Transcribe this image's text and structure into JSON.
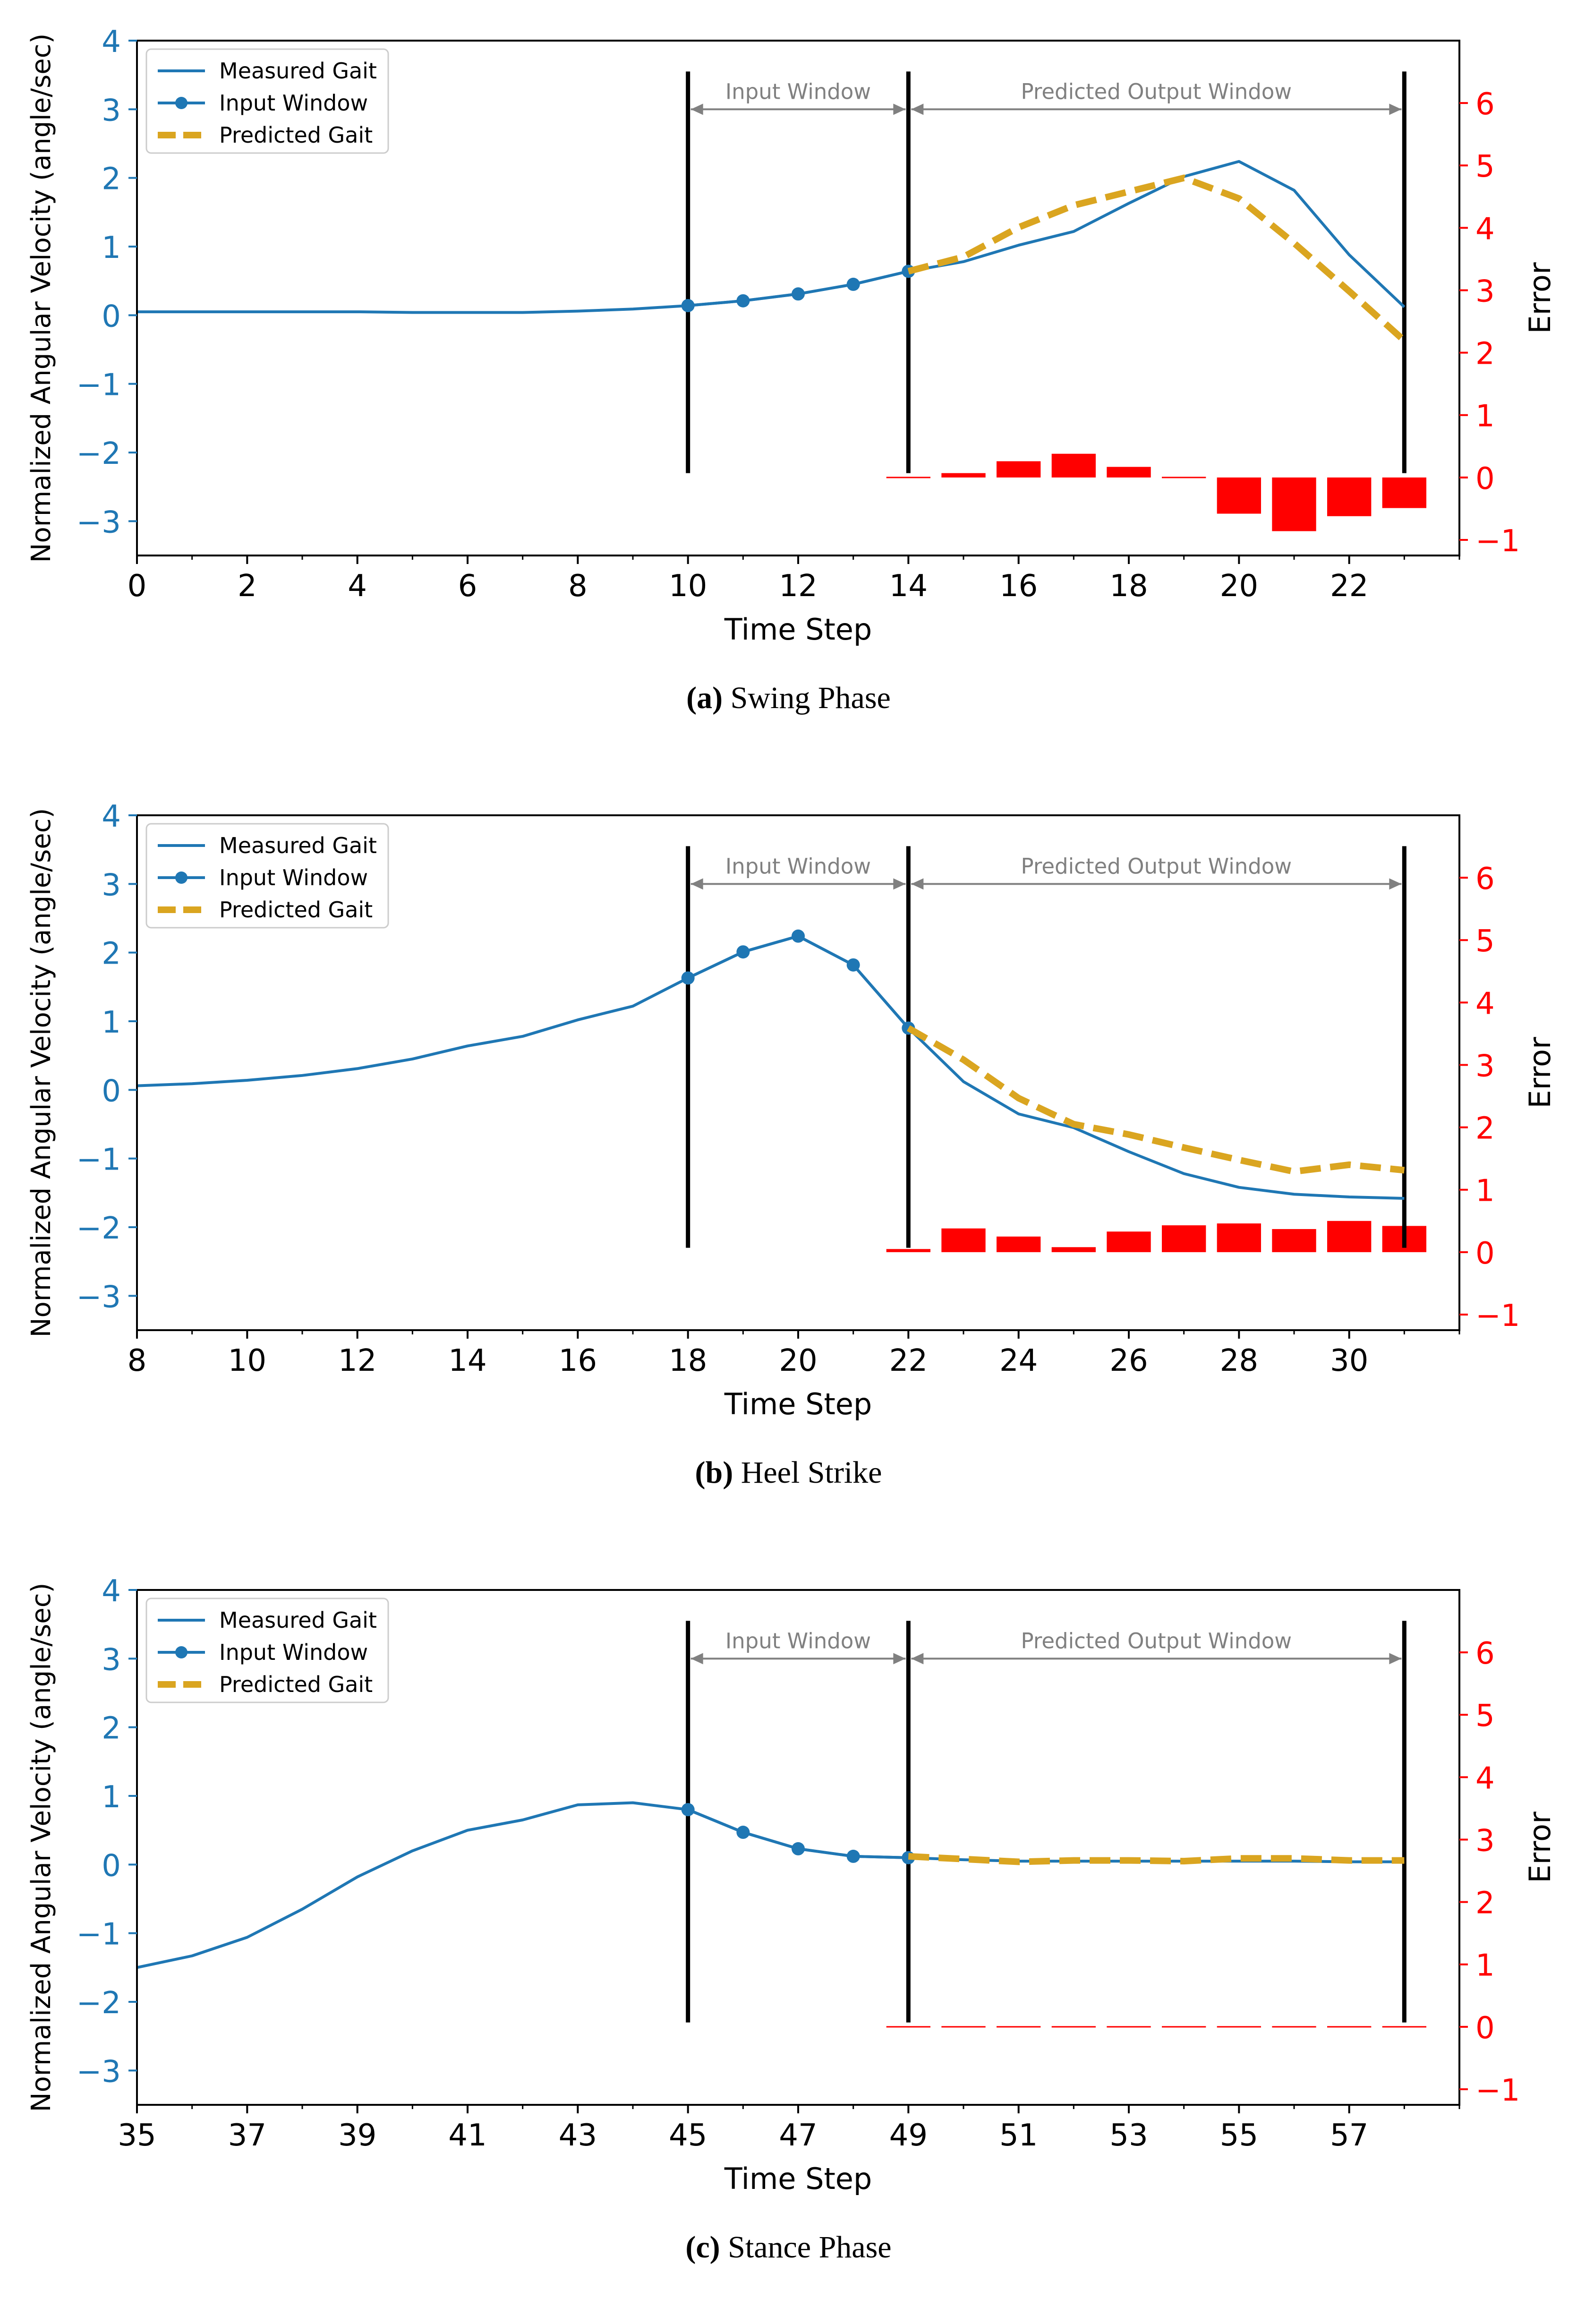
{
  "common": {
    "ylabel": "Normalized Angular Velocity (angle/sec)",
    "xlabel": "Time Step",
    "y2label": "Error",
    "ylim": [
      -3.5,
      4
    ],
    "y2lim": [
      -1.25,
      7
    ],
    "yticks": [
      "−3",
      "−2",
      "−1",
      "0",
      "1",
      "2",
      "3",
      "4"
    ],
    "y2ticks": [
      "−1",
      "0",
      "1",
      "2",
      "3",
      "4",
      "5",
      "6"
    ],
    "input_window_label": "Input Window",
    "output_window_label": "Predicted Output Window",
    "legend": [
      "Measured Gait",
      "Input Window",
      "Predicted Gait"
    ],
    "colors": {
      "measured": "#1f77b4",
      "predicted": "#daa520",
      "error": "#ff0000",
      "window_line": "#000000",
      "arrow": "#808080"
    }
  },
  "chart_data": [
    {
      "type": "line",
      "caption_label": "(a)",
      "caption_text": "Swing Phase",
      "xlim": [
        0,
        24
      ],
      "xticks": [
        0,
        2,
        4,
        6,
        8,
        10,
        12,
        14,
        16,
        18,
        20,
        22
      ],
      "xtick_labels": [
        "0",
        "2",
        "4",
        "6",
        "8",
        "10",
        "12",
        "14",
        "16",
        "18",
        "20",
        "22"
      ],
      "window_lines": [
        10,
        14,
        23
      ],
      "measured": {
        "x": [
          0,
          1,
          2,
          3,
          4,
          5,
          6,
          7,
          8,
          9,
          10,
          11,
          12,
          13,
          14,
          15,
          16,
          17,
          18,
          19,
          20,
          21,
          22,
          23
        ],
        "y": [
          0.05,
          0.05,
          0.05,
          0.05,
          0.05,
          0.04,
          0.04,
          0.04,
          0.06,
          0.09,
          0.14,
          0.21,
          0.31,
          0.45,
          0.64,
          0.78,
          1.02,
          1.22,
          1.63,
          2.02,
          2.24,
          1.82,
          0.88,
          0.12
        ]
      },
      "input": {
        "x": [
          10,
          11,
          12,
          13,
          14
        ],
        "y": [
          0.14,
          0.21,
          0.31,
          0.45,
          0.64
        ]
      },
      "predicted": {
        "x": [
          14,
          15,
          16,
          17,
          18,
          19,
          20,
          21,
          22,
          23
        ],
        "y": [
          0.64,
          0.85,
          1.28,
          1.6,
          1.8,
          2.0,
          1.7,
          1.05,
          0.35,
          -0.37
        ]
      },
      "error": {
        "x": [
          14,
          15,
          16,
          17,
          18,
          19,
          20,
          21,
          22,
          23
        ],
        "values": [
          0.0,
          0.07,
          0.26,
          0.38,
          0.17,
          -0.02,
          -0.58,
          -0.86,
          -0.62,
          -0.49
        ]
      }
    },
    {
      "type": "line",
      "caption_label": "(b)",
      "caption_text": "Heel Strike",
      "xlim": [
        8,
        32
      ],
      "xticks": [
        8,
        10,
        12,
        14,
        16,
        18,
        20,
        22,
        24,
        26,
        28,
        30
      ],
      "xtick_labels": [
        "8",
        "10",
        "12",
        "14",
        "16",
        "18",
        "20",
        "22",
        "24",
        "26",
        "28",
        "30"
      ],
      "window_lines": [
        18,
        22,
        31
      ],
      "measured": {
        "x": [
          8,
          9,
          10,
          11,
          12,
          13,
          14,
          15,
          16,
          17,
          18,
          19,
          20,
          21,
          22,
          23,
          24,
          25,
          26,
          27,
          28,
          29,
          30,
          31
        ],
        "y": [
          0.06,
          0.09,
          0.14,
          0.21,
          0.31,
          0.45,
          0.64,
          0.78,
          1.02,
          1.22,
          1.63,
          2.01,
          2.24,
          1.82,
          0.9,
          0.12,
          -0.35,
          -0.55,
          -0.9,
          -1.22,
          -1.42,
          -1.52,
          -1.56,
          -1.58
        ]
      },
      "input": {
        "x": [
          18,
          19,
          20,
          21,
          22
        ],
        "y": [
          1.63,
          2.01,
          2.24,
          1.82,
          0.9
        ]
      },
      "predicted": {
        "x": [
          22,
          23,
          24,
          25,
          26,
          27,
          28,
          29,
          30,
          31
        ],
        "y": [
          0.9,
          0.44,
          -0.12,
          -0.5,
          -0.65,
          -0.84,
          -1.02,
          -1.19,
          -1.09,
          -1.17
        ]
      },
      "error": {
        "x": [
          22,
          23,
          24,
          25,
          26,
          27,
          28,
          29,
          30,
          31
        ],
        "values": [
          0.05,
          0.38,
          0.25,
          0.08,
          0.33,
          0.43,
          0.46,
          0.37,
          0.5,
          0.42
        ]
      }
    },
    {
      "type": "line",
      "caption_label": "(c)",
      "caption_text": "Stance Phase",
      "xlim": [
        35,
        59
      ],
      "xticks": [
        35,
        37,
        39,
        41,
        43,
        45,
        47,
        49,
        51,
        53,
        55,
        57
      ],
      "xtick_labels": [
        "35",
        "37",
        "39",
        "41",
        "43",
        "45",
        "47",
        "49",
        "51",
        "53",
        "55",
        "57"
      ],
      "window_lines": [
        45,
        49,
        58
      ],
      "measured": {
        "x": [
          35,
          36,
          37,
          38,
          39,
          40,
          41,
          42,
          43,
          44,
          45,
          46,
          47,
          48,
          49,
          50,
          51,
          52,
          53,
          54,
          55,
          56,
          57,
          58
        ],
        "y": [
          -1.5,
          -1.33,
          -1.06,
          -0.65,
          -0.18,
          0.2,
          0.5,
          0.65,
          0.87,
          0.9,
          0.8,
          0.47,
          0.23,
          0.12,
          0.1,
          0.07,
          0.05,
          0.05,
          0.05,
          0.05,
          0.05,
          0.05,
          0.04,
          0.04
        ]
      },
      "input": {
        "x": [
          45,
          46,
          47,
          48,
          49
        ],
        "y": [
          0.8,
          0.47,
          0.23,
          0.12,
          0.1
        ]
      },
      "predicted": {
        "x": [
          49,
          50,
          51,
          52,
          53,
          54,
          55,
          56,
          57,
          58
        ],
        "y": [
          0.12,
          0.08,
          0.04,
          0.06,
          0.06,
          0.05,
          0.09,
          0.09,
          0.06,
          0.06
        ]
      },
      "error": {
        "x": [
          49,
          50,
          51,
          52,
          53,
          54,
          55,
          56,
          57,
          58
        ],
        "values": [
          0.01,
          0.01,
          -0.02,
          0.01,
          -0.01,
          -0.01,
          0.01,
          0.02,
          0.01,
          0.01
        ]
      }
    }
  ]
}
